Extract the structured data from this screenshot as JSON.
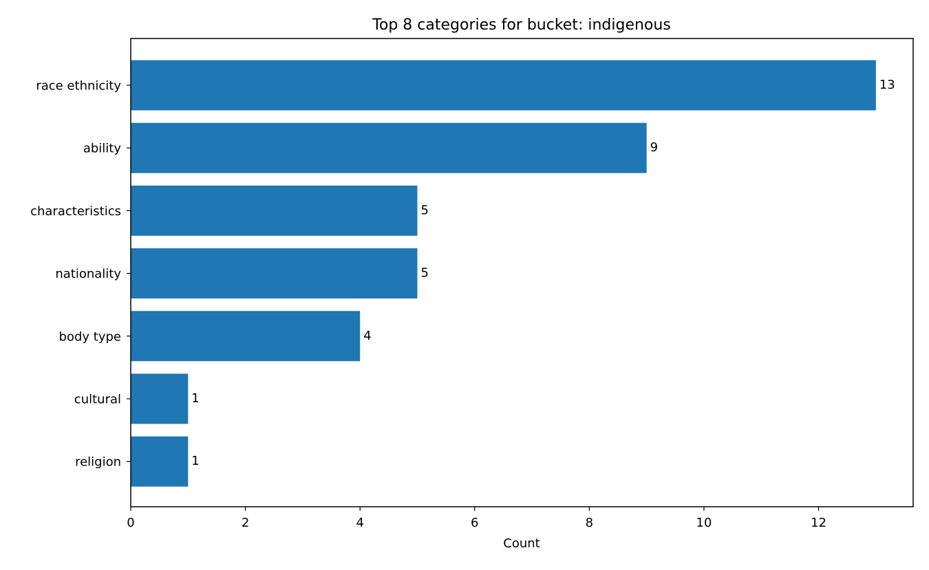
{
  "chart_data": {
    "type": "bar",
    "orientation": "horizontal",
    "title": "Top 8 categories for bucket: indigenous",
    "xlabel": "Count",
    "ylabel": "",
    "categories": [
      "race ethnicity",
      "ability",
      "characteristics",
      "nationality",
      "body type",
      "cultural",
      "religion"
    ],
    "values": [
      13,
      9,
      5,
      5,
      4,
      1,
      1
    ],
    "data_labels": [
      "13",
      "9",
      "5",
      "5",
      "4",
      "1",
      "1"
    ],
    "xlim": [
      0,
      13.65
    ],
    "xticks": [
      0,
      2,
      4,
      6,
      8,
      10,
      12
    ],
    "xtick_labels": [
      "0",
      "2",
      "4",
      "6",
      "8",
      "10",
      "12"
    ],
    "grid": false,
    "bar_color": "#1f77b4"
  }
}
